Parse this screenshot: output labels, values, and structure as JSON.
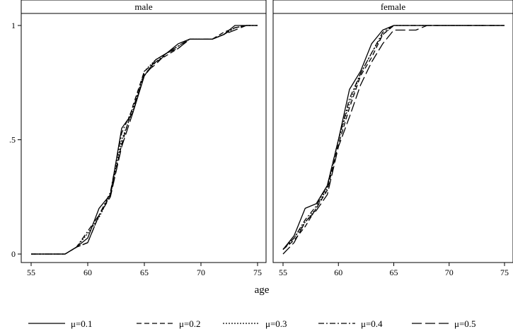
{
  "chart_data": {
    "type": "line",
    "xlabel": "age",
    "ylabel": "",
    "xlim": [
      55,
      75
    ],
    "ylim": [
      0,
      1
    ],
    "xticks": [
      "55",
      "60",
      "65",
      "70",
      "75"
    ],
    "yticks": [
      "0",
      ".5",
      "1"
    ],
    "legend_position": "bottom",
    "grid": false,
    "line_color": "#000000",
    "legend": [
      {
        "label": "μ=0.1",
        "dash": "solid"
      },
      {
        "label": "μ=0.2",
        "dash": "dashed"
      },
      {
        "label": "μ=0.3",
        "dash": "dotted"
      },
      {
        "label": "μ=0.4",
        "dash": "dashdot"
      },
      {
        "label": "μ=0.5",
        "dash": "longdash"
      }
    ],
    "panels": [
      {
        "title": "male",
        "x": [
          55,
          56,
          57,
          58,
          59,
          60,
          61,
          62,
          63,
          64,
          65,
          66,
          67,
          68,
          69,
          70,
          71,
          72,
          73,
          74,
          75
        ],
        "series": [
          {
            "name": "μ=0.1",
            "values": [
              0,
              0,
              0,
              0,
              0.03,
              0.07,
              0.2,
              0.26,
              0.55,
              0.62,
              0.78,
              0.85,
              0.88,
              0.92,
              0.94,
              0.94,
              0.94,
              0.96,
              1,
              1,
              1
            ]
          },
          {
            "name": "μ=0.2",
            "values": [
              0,
              0,
              0,
              0,
              0.03,
              0.05,
              0.17,
              0.26,
              0.48,
              0.65,
              0.8,
              0.84,
              0.87,
              0.9,
              0.94,
              0.94,
              0.94,
              0.97,
              0.99,
              1,
              1
            ]
          },
          {
            "name": "μ=0.3",
            "values": [
              0,
              0,
              0,
              0,
              0.03,
              0.09,
              0.16,
              0.26,
              0.5,
              0.63,
              0.8,
              0.85,
              0.88,
              0.91,
              0.94,
              0.94,
              0.94,
              0.96,
              0.99,
              1,
              1
            ]
          },
          {
            "name": "μ=0.4",
            "values": [
              0,
              0,
              0,
              0,
              0.03,
              0.1,
              0.17,
              0.27,
              0.53,
              0.64,
              0.78,
              0.84,
              0.88,
              0.91,
              0.94,
              0.94,
              0.94,
              0.96,
              0.99,
              1,
              1
            ]
          },
          {
            "name": "μ=0.5",
            "values": [
              0,
              0,
              0,
              0,
              0.03,
              0.05,
              0.17,
              0.25,
              0.47,
              0.62,
              0.79,
              0.83,
              0.88,
              0.9,
              0.94,
              0.94,
              0.94,
              0.96,
              0.98,
              1,
              1
            ]
          }
        ]
      },
      {
        "title": "female",
        "x": [
          55,
          56,
          57,
          58,
          59,
          60,
          61,
          62,
          63,
          64,
          65,
          66,
          67,
          68,
          69,
          70,
          71,
          72,
          73,
          74,
          75
        ],
        "series": [
          {
            "name": "μ=0.1",
            "values": [
              0.02,
              0.08,
              0.2,
              0.22,
              0.3,
              0.5,
              0.72,
              0.8,
              0.92,
              0.98,
              1,
              1,
              1,
              1,
              1,
              1,
              1,
              1,
              1,
              1,
              1
            ]
          },
          {
            "name": "μ=0.2",
            "values": [
              0.02,
              0.06,
              0.12,
              0.2,
              0.28,
              0.48,
              0.64,
              0.78,
              0.86,
              0.96,
              1,
              1,
              1,
              1,
              1,
              1,
              1,
              1,
              1,
              1,
              1
            ]
          },
          {
            "name": "μ=0.3",
            "values": [
              0.02,
              0.07,
              0.14,
              0.2,
              0.29,
              0.5,
              0.66,
              0.79,
              0.88,
              0.96,
              1,
              1,
              1,
              1,
              1,
              1,
              1,
              1,
              1,
              1,
              1
            ]
          },
          {
            "name": "μ=0.4",
            "values": [
              0.02,
              0.07,
              0.15,
              0.21,
              0.3,
              0.5,
              0.68,
              0.79,
              0.88,
              0.97,
              1,
              1,
              1,
              1,
              1,
              1,
              1,
              1,
              1,
              1,
              1
            ]
          },
          {
            "name": "μ=0.5",
            "values": [
              0,
              0.05,
              0.14,
              0.19,
              0.26,
              0.47,
              0.6,
              0.74,
              0.84,
              0.92,
              0.98,
              0.98,
              0.98,
              1,
              1,
              1,
              1,
              1,
              1,
              1,
              1
            ]
          }
        ]
      }
    ]
  }
}
